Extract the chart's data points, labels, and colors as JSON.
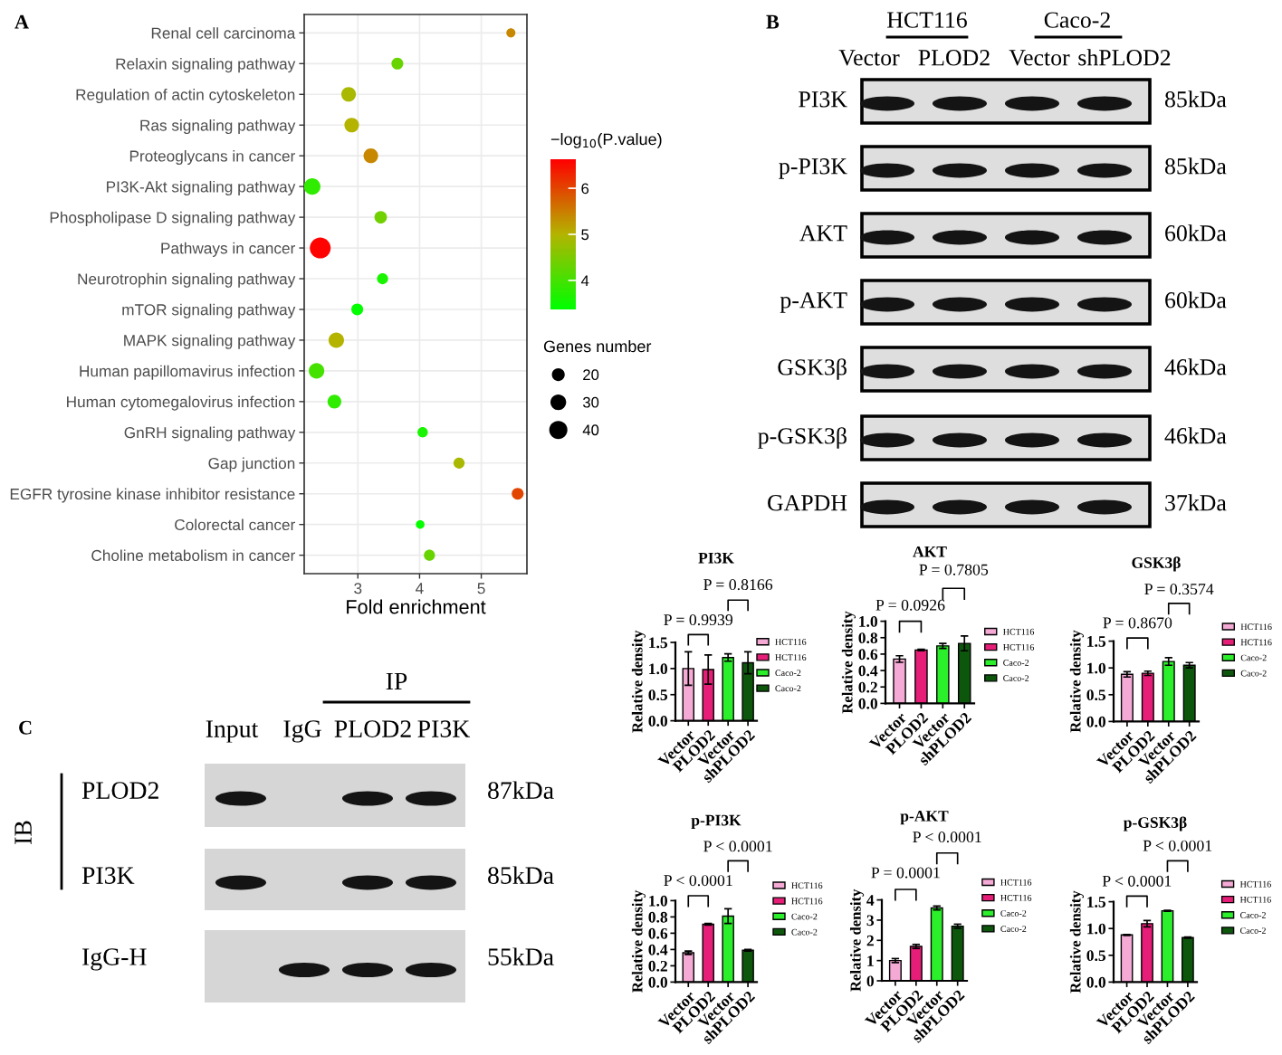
{
  "chart_data": [
    {
      "type": "bubble",
      "title": "A",
      "orientation": "horizontal",
      "categories": [
        "Renal cell carcinoma",
        "Relaxin signaling pathway",
        "Regulation of actin cytoskeleton",
        "Ras signaling pathway",
        "Proteoglycans in cancer",
        "PI3K-Akt signaling pathway",
        "Phospholipase D signaling pathway",
        "Pathways in cancer",
        "Neurotrophin signaling pathway",
        "mTOR signaling pathway",
        "MAPK signaling pathway",
        "Human papillomavirus infection",
        "Human cytomegalovirus infection",
        "GnRH signaling pathway",
        "Gap junction",
        "EGFR tyrosine kinase inhibitor resistance",
        "Colorectal cancer",
        "Choline metabolism in cancer"
      ],
      "values": [
        5.48,
        3.64,
        2.85,
        2.9,
        3.21,
        2.26,
        3.37,
        2.39,
        3.4,
        2.99,
        2.65,
        2.33,
        2.62,
        4.05,
        4.64,
        5.59,
        4.01,
        4.16
      ],
      "sizes": [
        10,
        17,
        26,
        26,
        26,
        33,
        19,
        53,
        15,
        17,
        29,
        29,
        23,
        13,
        15,
        17,
        9,
        15
      ],
      "cvalues": [
        5.4,
        4.3,
        4.9,
        5.0,
        5.4,
        3.8,
        4.4,
        6.6,
        3.6,
        3.4,
        5.0,
        4.0,
        3.8,
        3.6,
        4.9,
        6.0,
        3.4,
        4.3
      ],
      "clabel": "−log$_{10}$(P.value)",
      "clim": [
        3.37,
        6.63
      ],
      "cticks": [
        4,
        5,
        6
      ],
      "size_legend": [
        20,
        30,
        40
      ],
      "legend_title": "Genes number",
      "xlabel": "Fold enrichment",
      "xlim": [
        2.13,
        5.74
      ],
      "xticks": [
        3,
        4,
        5
      ],
      "grid": true
    },
    {
      "type": "other",
      "title": "B",
      "categories": [
        "Vector",
        "PLOD2",
        "Vector",
        "shPLOD2"
      ],
      "y_categories": [
        "PI3K",
        "p-PI3K",
        "AKT",
        "p-AKT",
        "GSK3β",
        "p-GSK3β",
        "GAPDH"
      ],
      "y2_categories": [
        "85kDa",
        "85kDa",
        "60kDa",
        "60kDa",
        "46kDa",
        "46kDa",
        "37kDa"
      ],
      "annotations": [
        "HCT116",
        "Caco-2"
      ]
    },
    {
      "type": "bar",
      "title": "PI3K",
      "ylabel": "Relative density",
      "categories": [
        "Vector",
        "PLOD2",
        "Vector",
        "shPLOD2"
      ],
      "series": [
        {
          "name": "HCT116",
          "color": "#f5a9d5",
          "values": [
            1.0,
            null,
            null,
            null
          ],
          "errors": [
            0.32,
            null,
            null,
            null
          ]
        },
        {
          "name": "HCT116",
          "color": "#e61e78",
          "values": [
            null,
            0.98,
            null,
            null
          ],
          "errors": [
            null,
            0.28,
            null,
            null
          ]
        },
        {
          "name": "Caco-2",
          "color": "#2bef2b",
          "values": [
            null,
            null,
            1.21,
            null
          ],
          "errors": [
            null,
            null,
            0.07,
            null
          ]
        },
        {
          "name": "Caco-2",
          "color": "#0d570d",
          "values": [
            null,
            null,
            null,
            1.11
          ],
          "errors": [
            null,
            null,
            null,
            0.21
          ]
        }
      ],
      "ylim": [
        0,
        1.5
      ],
      "yticks": [
        {
          "value": 0,
          "label": "0.0"
        },
        {
          "value": 0.5,
          "label": "0.5"
        },
        {
          "value": 1,
          "label": "1.0"
        },
        {
          "value": 1.5,
          "label": "1.5"
        }
      ],
      "legend": "right",
      "annotations": [
        "P = 0.9939",
        "P = 0.8166"
      ]
    },
    {
      "type": "bar",
      "title": "AKT",
      "ylabel": "Relative density",
      "categories": [
        "Vector",
        "PLOD2",
        "Vector",
        "shPLOD2"
      ],
      "series": [
        {
          "name": "HCT116",
          "color": "#f5a9d5",
          "values": [
            0.54,
            null,
            null,
            null
          ],
          "errors": [
            0.04,
            null,
            null,
            null
          ]
        },
        {
          "name": "HCT116",
          "color": "#e61e78",
          "values": [
            null,
            0.65,
            null,
            null
          ],
          "errors": [
            null,
            0.01,
            null,
            null
          ]
        },
        {
          "name": "Caco-2",
          "color": "#2bef2b",
          "values": [
            null,
            null,
            0.7,
            null
          ],
          "errors": [
            null,
            null,
            0.03,
            null
          ]
        },
        {
          "name": "Caco-2",
          "color": "#0d570d",
          "values": [
            null,
            null,
            null,
            0.73
          ],
          "errors": [
            null,
            null,
            null,
            0.09
          ]
        }
      ],
      "ylim": [
        0,
        1
      ],
      "yticks": [
        {
          "value": 0,
          "label": "0.0"
        },
        {
          "value": 0.2,
          "label": "0.2"
        },
        {
          "value": 0.4,
          "label": "0.4"
        },
        {
          "value": 0.6,
          "label": "0.6"
        },
        {
          "value": 0.8,
          "label": "0.8"
        },
        {
          "value": 1,
          "label": "1.0"
        }
      ],
      "legend": "right",
      "annotations": [
        "P = 0.0926",
        "P = 0.7805"
      ]
    },
    {
      "type": "bar",
      "title": "GSK3β",
      "ylabel": "Relative density",
      "categories": [
        "Vector",
        "PLOD2",
        "Vector",
        "shPLOD2"
      ],
      "series": [
        {
          "name": "HCT116",
          "color": "#f5a9d5",
          "values": [
            0.88,
            null,
            null,
            null
          ],
          "errors": [
            0.05,
            null,
            null,
            null
          ]
        },
        {
          "name": "HCT116",
          "color": "#e61e78",
          "values": [
            null,
            0.9,
            null,
            null
          ],
          "errors": [
            null,
            0.04,
            null,
            null
          ]
        },
        {
          "name": "Caco-2",
          "color": "#2bef2b",
          "values": [
            null,
            null,
            1.12,
            null
          ],
          "errors": [
            null,
            null,
            0.07,
            null
          ]
        },
        {
          "name": "Caco-2",
          "color": "#0d570d",
          "values": [
            null,
            null,
            null,
            1.05
          ],
          "errors": [
            null,
            null,
            null,
            0.05
          ]
        }
      ],
      "ylim": [
        0,
        1.5
      ],
      "yticks": [
        {
          "value": 0,
          "label": "0.0"
        },
        {
          "value": 0.5,
          "label": "0.5"
        },
        {
          "value": 1,
          "label": "1.0"
        },
        {
          "value": 1.5,
          "label": "1.5"
        }
      ],
      "legend": "right",
      "annotations": [
        "P = 0.8670",
        "P = 0.3574"
      ]
    },
    {
      "type": "bar",
      "title": "p-PI3K",
      "ylabel": "Relative density",
      "categories": [
        "Vector",
        "PLOD2",
        "Vector",
        "shPLOD2"
      ],
      "series": [
        {
          "name": "HCT116",
          "color": "#f5a9d5",
          "values": [
            0.36,
            null,
            null,
            null
          ],
          "errors": [
            0.02,
            null,
            null,
            null
          ]
        },
        {
          "name": "HCT116",
          "color": "#e61e78",
          "values": [
            null,
            0.71,
            null,
            null
          ],
          "errors": [
            null,
            0.01,
            null,
            null
          ]
        },
        {
          "name": "Caco-2",
          "color": "#2bef2b",
          "values": [
            null,
            null,
            0.81,
            null
          ],
          "errors": [
            null,
            null,
            0.09,
            null
          ]
        },
        {
          "name": "Caco-2",
          "color": "#0d570d",
          "values": [
            null,
            null,
            null,
            0.39
          ],
          "errors": [
            null,
            null,
            null,
            0.01
          ]
        }
      ],
      "ylim": [
        0,
        1
      ],
      "yticks": [
        {
          "value": 0,
          "label": "0.0"
        },
        {
          "value": 0.2,
          "label": "0.2"
        },
        {
          "value": 0.4,
          "label": "0.4"
        },
        {
          "value": 0.6,
          "label": "0.6"
        },
        {
          "value": 0.8,
          "label": "0.8"
        },
        {
          "value": 1,
          "label": "1.0"
        }
      ],
      "legend": "right",
      "annotations": [
        "P < 0.0001",
        "P < 0.0001"
      ]
    },
    {
      "type": "bar",
      "title": "p-AKT",
      "ylabel": "Relative density",
      "categories": [
        "Vector",
        "PLOD2",
        "Vector",
        "shPLOD2"
      ],
      "series": [
        {
          "name": "HCT116",
          "color": "#f5a9d5",
          "values": [
            1.0,
            null,
            null,
            null
          ],
          "errors": [
            0.1,
            null,
            null,
            null
          ]
        },
        {
          "name": "HCT116",
          "color": "#e61e78",
          "values": [
            null,
            1.7,
            null,
            null
          ],
          "errors": [
            null,
            0.1,
            null,
            null
          ]
        },
        {
          "name": "Caco-2",
          "color": "#2bef2b",
          "values": [
            null,
            null,
            3.6,
            null
          ],
          "errors": [
            null,
            null,
            0.1,
            null
          ]
        },
        {
          "name": "Caco-2",
          "color": "#0d570d",
          "values": [
            null,
            null,
            null,
            2.7
          ],
          "errors": [
            null,
            null,
            null,
            0.1
          ]
        }
      ],
      "ylim": [
        0,
        4
      ],
      "yticks": [
        0,
        1,
        2,
        3,
        4
      ],
      "legend": "right",
      "annotations": [
        "P = 0.0001",
        "P < 0.0001"
      ]
    },
    {
      "type": "bar",
      "title": "p-GSK3β",
      "ylabel": "Relative density",
      "categories": [
        "Vector",
        "PLOD2",
        "Vector",
        "shPLOD2"
      ],
      "series": [
        {
          "name": "HCT116",
          "color": "#f5a9d5",
          "values": [
            0.88,
            null,
            null,
            null
          ],
          "errors": [
            0.01,
            null,
            null,
            null
          ]
        },
        {
          "name": "HCT116",
          "color": "#e61e78",
          "values": [
            null,
            1.09,
            null,
            null
          ],
          "errors": [
            null,
            0.06,
            null,
            null
          ]
        },
        {
          "name": "Caco-2",
          "color": "#2bef2b",
          "values": [
            null,
            null,
            1.33,
            null
          ],
          "errors": [
            null,
            null,
            0.01,
            null
          ]
        },
        {
          "name": "Caco-2",
          "color": "#0d570d",
          "values": [
            null,
            null,
            null,
            0.83
          ],
          "errors": [
            null,
            null,
            null,
            0.01
          ]
        }
      ],
      "ylim": [
        0,
        1.5
      ],
      "yticks": [
        {
          "value": 0,
          "label": "0.0"
        },
        {
          "value": 0.5,
          "label": "0.5"
        },
        {
          "value": 1,
          "label": "1.0"
        },
        {
          "value": 1.5,
          "label": "1.5"
        }
      ],
      "legend": "right",
      "annotations": [
        "P < 0.0001",
        "P < 0.0001"
      ]
    },
    {
      "type": "other",
      "title": "C",
      "categories": [
        "Input",
        "IgG",
        "PLOD2",
        "PI3K"
      ],
      "y_categories": [
        "PLOD2",
        "PI3K",
        "IgG-H"
      ],
      "y2_categories": [
        "87kDa",
        "85kDa",
        "55kDa"
      ],
      "annotations": [
        "IP",
        "IB"
      ]
    }
  ]
}
